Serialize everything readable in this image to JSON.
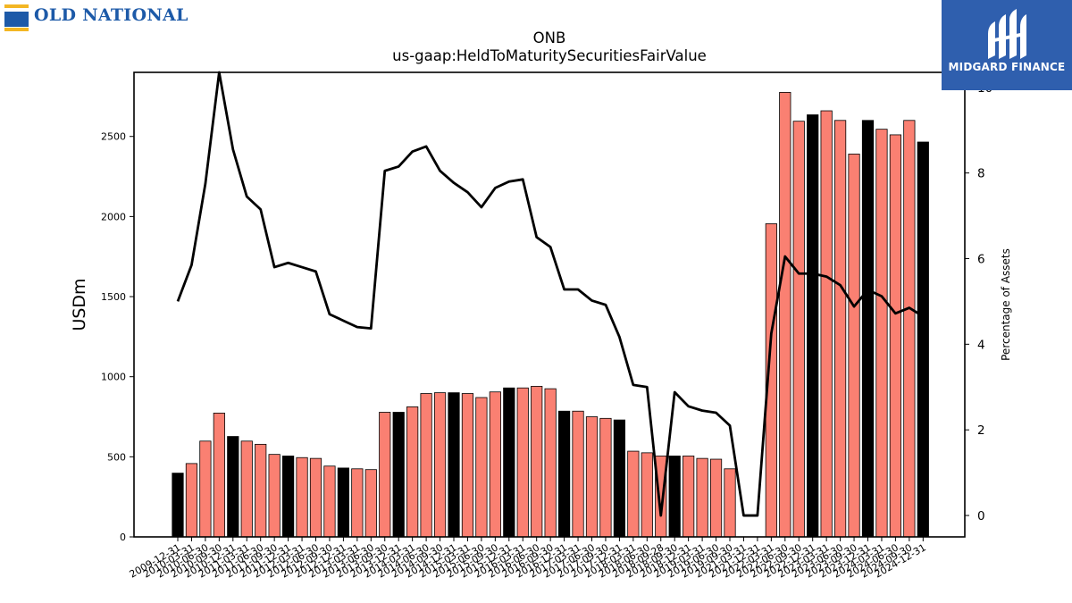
{
  "logo": {
    "text": "OLD NATIONAL",
    "colors": {
      "blue": "#1d5aa8",
      "gold": "#f3b623"
    }
  },
  "badge": {
    "text": "MIDGARD FINANCE",
    "color": "#2f5fae"
  },
  "chart_data": {
    "type": "bar",
    "title": "ONB",
    "subtitle": "us-gaap:HeldToMaturitySecuritiesFairValue",
    "ylabel": "USDm",
    "y2label": "Percentage of Assets",
    "ylim": [
      0,
      2900
    ],
    "y2lim": [
      -0.5,
      10.35
    ],
    "yticks": [
      0,
      500,
      1000,
      1500,
      2000,
      2500
    ],
    "y2ticks": [
      0,
      2,
      4,
      6,
      8,
      10
    ],
    "grid": false,
    "colors": {
      "bar": "#fa8072",
      "bar_highlight": "#000000",
      "line": "#000000"
    },
    "categories": [
      "2009-12-31",
      "2010-03-31",
      "2010-06-30",
      "2010-09-30",
      "2010-12-31",
      "2011-03-31",
      "2011-06-30",
      "2011-09-30",
      "2011-12-31",
      "2012-03-31",
      "2012-06-30",
      "2012-09-30",
      "2012-12-31",
      "2013-03-31",
      "2013-06-30",
      "2013-09-30",
      "2013-12-31",
      "2014-03-31",
      "2014-06-30",
      "2014-09-30",
      "2014-12-31",
      "2015-03-31",
      "2015-06-30",
      "2015-09-30",
      "2015-12-31",
      "2016-03-31",
      "2016-06-30",
      "2016-09-30",
      "2016-12-31",
      "2017-03-31",
      "2017-06-30",
      "2017-09-30",
      "2017-12-31",
      "2018-03-31",
      "2018-06-30",
      "2018-09-28",
      "2018-09-30",
      "2018-12-31",
      "2019-03-31",
      "2019-06-30",
      "2019-09-30",
      "2021-03-31",
      "2021-12-31",
      "2022-03-31",
      "2022-06-30",
      "2022-09-30",
      "2022-12-31",
      "2023-03-31",
      "2023-06-30",
      "2023-09-30",
      "2023-12-31",
      "2024-03-31",
      "2024-06-30",
      "2024-09-30",
      "2024-12-31"
    ],
    "series": [
      {
        "type": "bar",
        "values": [
          398,
          458,
          598,
          773,
          627,
          598,
          578,
          515,
          505,
          495,
          490,
          442,
          430,
          425,
          420,
          778,
          778,
          812,
          895,
          900,
          900,
          895,
          870,
          905,
          930,
          930,
          940,
          925,
          785,
          785,
          750,
          740,
          730,
          535,
          525,
          505,
          505,
          505,
          490,
          485,
          425,
          0,
          0,
          1955,
          2775,
          2595,
          2635,
          2660,
          2600,
          2390,
          2600,
          2545,
          2510,
          2600,
          2465
        ],
        "highlight": [
          true,
          false,
          false,
          false,
          true,
          false,
          false,
          false,
          true,
          false,
          false,
          false,
          true,
          false,
          false,
          false,
          true,
          false,
          false,
          false,
          true,
          false,
          false,
          false,
          true,
          false,
          false,
          false,
          true,
          false,
          false,
          false,
          true,
          false,
          false,
          false,
          true,
          false,
          false,
          false,
          false,
          false,
          false,
          false,
          false,
          false,
          true,
          false,
          false,
          false,
          true,
          false,
          false,
          false,
          true
        ]
      },
      {
        "type": "line",
        "axis": "right",
        "values": [
          5.0,
          5.85,
          7.75,
          10.35,
          8.55,
          7.45,
          7.15,
          5.8,
          5.9,
          5.8,
          5.7,
          4.7,
          4.55,
          4.4,
          4.37,
          8.05,
          8.15,
          8.5,
          8.62,
          8.05,
          7.77,
          7.55,
          7.2,
          7.65,
          7.8,
          7.85,
          6.5,
          6.27,
          5.28,
          5.28,
          5.02,
          4.92,
          4.17,
          3.05,
          3.0,
          0.0,
          2.88,
          2.55,
          2.45,
          2.4,
          2.1,
          0.0,
          0.0,
          4.25,
          6.05,
          5.65,
          5.65,
          5.58,
          5.38,
          4.88,
          5.27,
          5.12,
          4.72,
          4.85,
          4.65
        ]
      }
    ]
  }
}
